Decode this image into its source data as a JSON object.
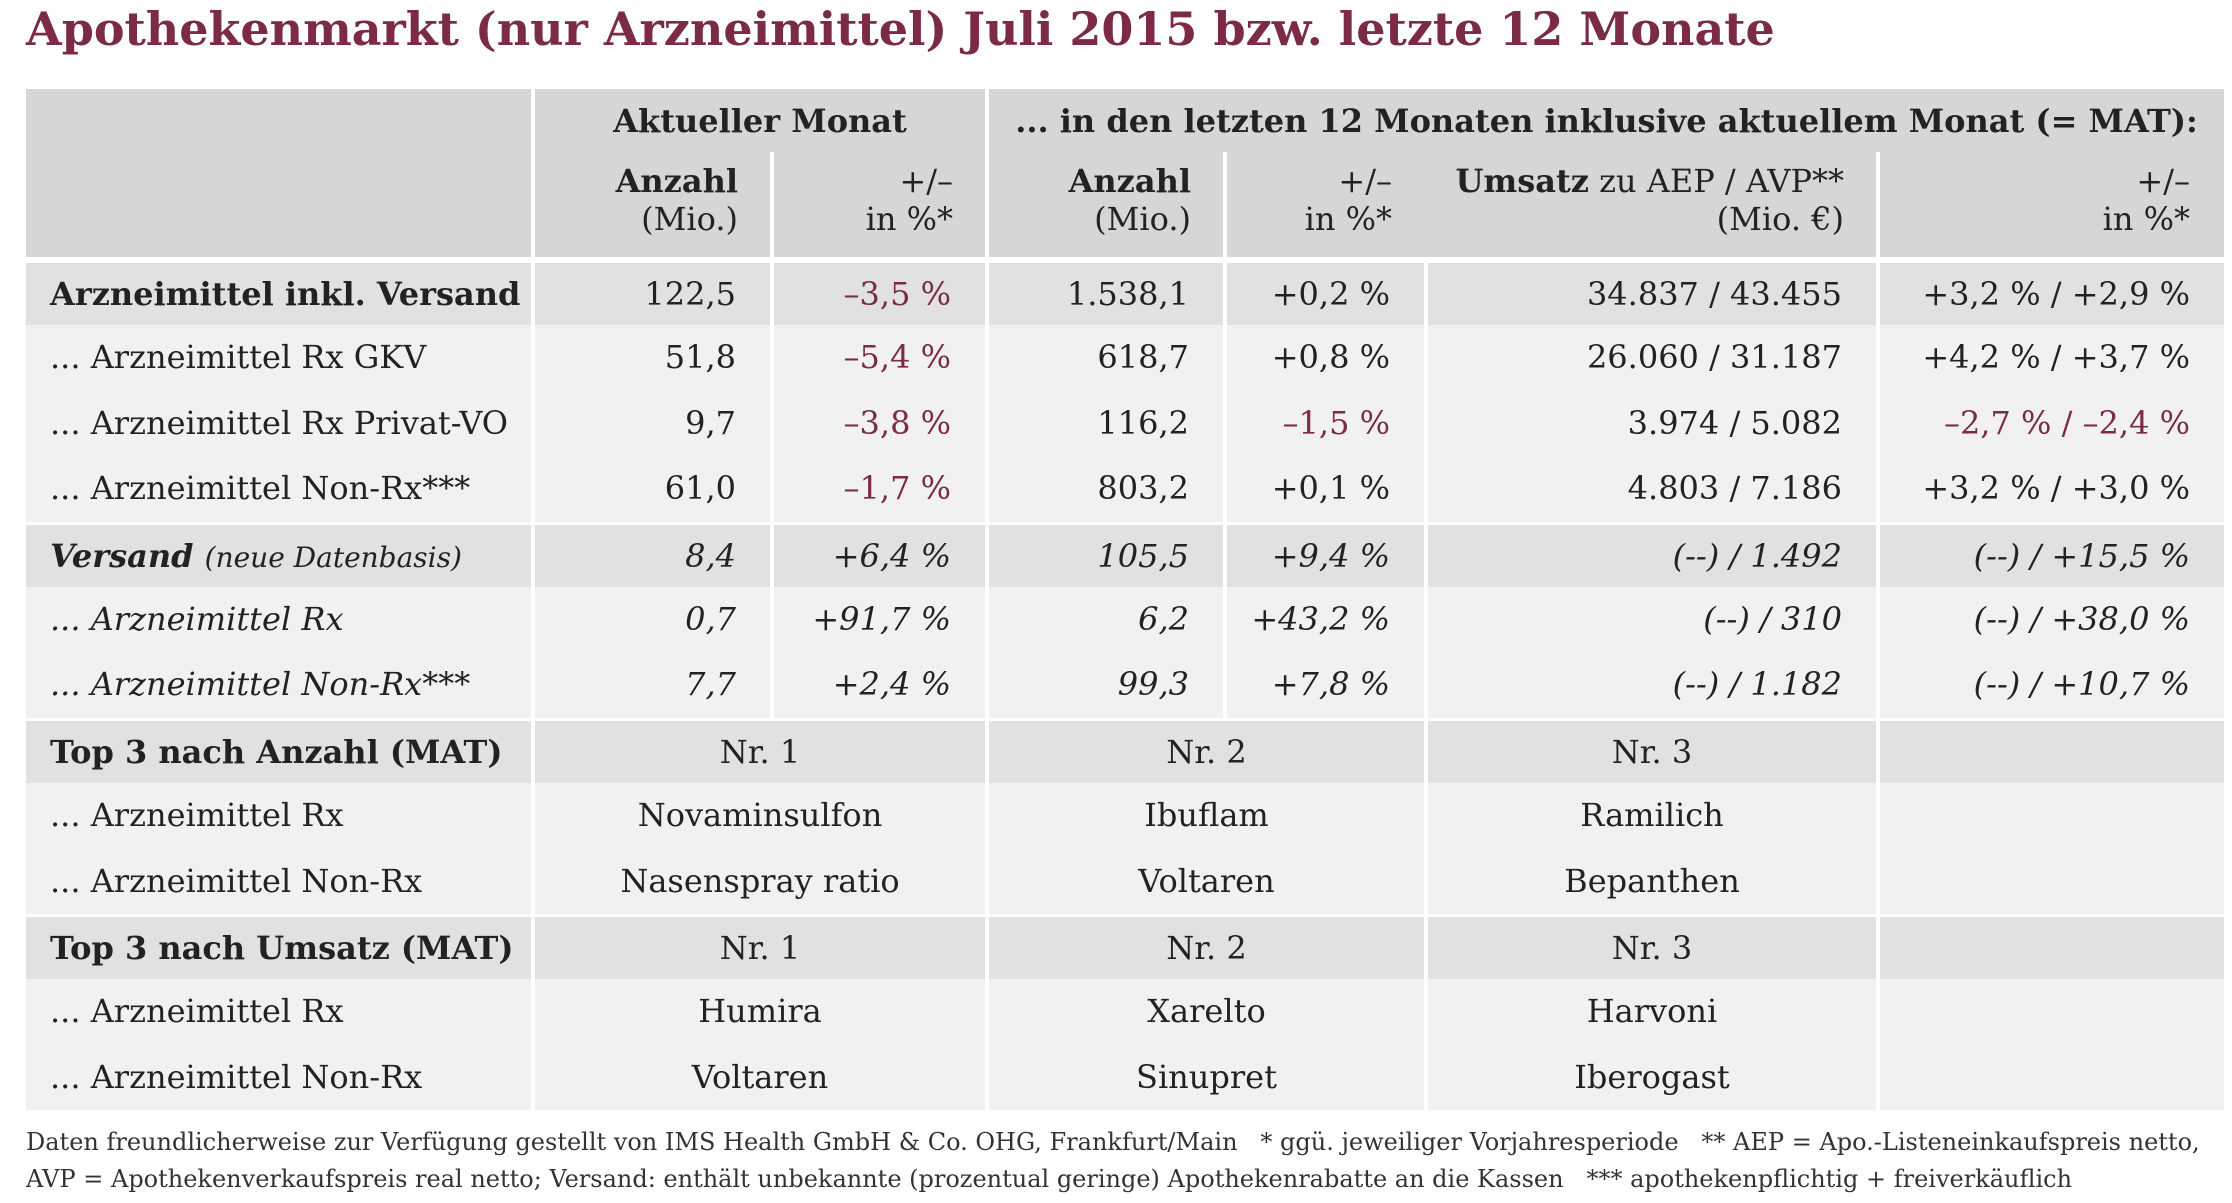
{
  "title": "Apothekenmarkt (nur Arzneimittel) Juli 2015 bzw. letzte 12 Monate",
  "table": {
    "groups": [
      "Aktueller Monat",
      "... in den letzten 12 Monaten inklusive aktuellem Monat (= MAT):"
    ],
    "columns": [
      {
        "title": "Anzahl",
        "unit": "(Mio.)"
      },
      {
        "title": "+/–",
        "unit": "in %*"
      },
      {
        "title": "Anzahl",
        "unit": "(Mio.)"
      },
      {
        "title": "+/–",
        "unit": "in %*"
      },
      {
        "title": "Umsatz",
        "title_rest": "zu AEP / AVP**",
        "unit": "(Mio. €)"
      },
      {
        "title": "+/–",
        "unit": "in %*"
      }
    ],
    "sections": [
      {
        "rows": [
          [
            "Arzneimittel inkl. Versand",
            "122,5",
            "–3,5 %",
            "1.538,1",
            "+0,2 %",
            "34.837 / 43.455",
            "+3,2 % / +2,9 %"
          ],
          [
            "... Arzneimittel Rx GKV",
            "51,8",
            "–5,4 %",
            "618,7",
            "+0,8 %",
            "26.060 / 31.187",
            "+4,2 % / +3,7 %"
          ],
          [
            "... Arzneimittel Rx Privat-VO",
            "9,7",
            "–3,8 %",
            "116,2",
            "–1,5 %",
            "3.974 / 5.082",
            "–2,7 % / –2,4 %"
          ],
          [
            "... Arzneimittel Non-Rx***",
            "61,0",
            "–1,7 %",
            "803,2",
            "+0,1 %",
            "4.803 / 7.186",
            "+3,2 % / +3,0 %"
          ]
        ]
      },
      {
        "label_note": "(neue Datenbasis)",
        "rows": [
          [
            "Versand",
            "8,4",
            "+6,4 %",
            "105,5",
            "+9,4 %",
            "(--) / 1.492",
            "(--) / +15,5 %"
          ],
          [
            "... Arzneimittel Rx",
            "0,7",
            "+91,7 %",
            "6,2",
            "+43,2 %",
            "(--) / 310",
            "(--) / +38,0 %"
          ],
          [
            "... Arzneimittel Non-Rx***",
            "7,7",
            "+2,4 %",
            "99,3",
            "+7,8 %",
            "(--) / 1.182",
            "(--) / +10,7 %"
          ]
        ]
      },
      {
        "rows": [
          [
            "Top 3 nach Anzahl (MAT)",
            "Nr. 1",
            "Nr. 2",
            "Nr. 3"
          ],
          [
            "... Arzneimittel Rx",
            "Novaminsulfon",
            "Ibuflam",
            "Ramilich"
          ],
          [
            "... Arzneimittel Non-Rx",
            "Nasenspray ratio",
            "Voltaren",
            "Bepanthen"
          ]
        ]
      },
      {
        "rows": [
          [
            "Top 3 nach Umsatz (MAT)",
            "Nr. 1",
            "Nr. 2",
            "Nr. 3"
          ],
          [
            "... Arzneimittel Rx",
            "Humira",
            "Xarelto",
            "Harvoni"
          ],
          [
            "... Arzneimittel Non-Rx",
            "Voltaren",
            "Sinupret",
            "Iberogast"
          ]
        ]
      }
    ]
  },
  "footer": [
    "Daten freundlicherweise zur Verfügung gestellt von IMS Health GmbH & Co. OHG, Frankfurt/Main   * ggü. jeweiliger Vorjahresperiode   ** AEP = Apo.-Listeneinkaufspreis netto,",
    "AVP = Apothekenverkaufspreis real netto; Versand: enthält unbekannte (prozentual geringe) Apothekenrabatte an die Kassen   *** apothekenpflichtig + freiverkäuflich"
  ]
}
